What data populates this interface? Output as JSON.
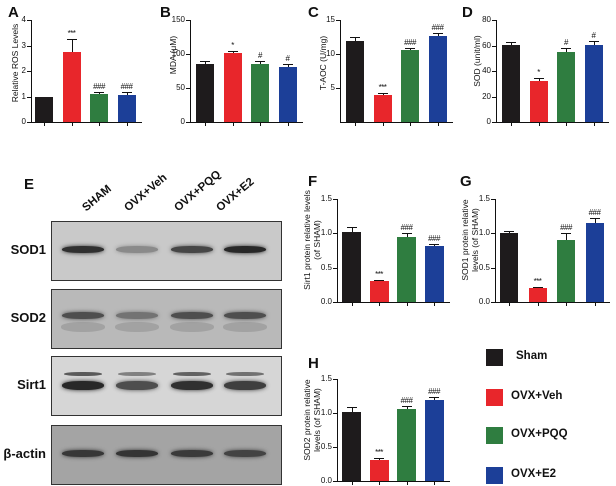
{
  "colors": {
    "Sham": "#1e1b1c",
    "OVX+Veh": "#e8262b",
    "OVX+PQQ": "#2f7d40",
    "OVX+E2": "#1c3f98"
  },
  "groups": [
    "Sham",
    "OVX+Veh",
    "OVX+PQQ",
    "OVX+E2"
  ],
  "chart_data": [
    {
      "panel": "A",
      "type": "bar",
      "title": "",
      "xlabel": "",
      "ylabel": "Relative ROS Levels",
      "ylim": [
        0,
        4
      ],
      "yticks": [
        "0",
        "1",
        "2",
        "3",
        "4"
      ],
      "categories": [
        "Sham",
        "OVX+Veh",
        "OVX+PQQ",
        "OVX+E2"
      ],
      "values": [
        1.0,
        2.75,
        1.08,
        1.07
      ],
      "errors": [
        0,
        0.5,
        0.1,
        0.1
      ],
      "annotations": [
        "",
        "***",
        "###",
        "###"
      ]
    },
    {
      "panel": "B",
      "type": "bar",
      "title": "",
      "xlabel": "",
      "ylabel": "MDA (μM)",
      "ylim": [
        0,
        150
      ],
      "yticks": [
        "0",
        "50",
        "100",
        "150"
      ],
      "categories": [
        "Sham",
        "OVX+Veh",
        "OVX+PQQ",
        "OVX+E2"
      ],
      "values": [
        85,
        101,
        85,
        81
      ],
      "errors": [
        5,
        4,
        4,
        4
      ],
      "annotations": [
        "",
        "*",
        "#",
        "#"
      ]
    },
    {
      "panel": "C",
      "type": "bar",
      "title": "",
      "xlabel": "",
      "ylabel": "T-AOC (U/mg)",
      "ylim": [
        0,
        15
      ],
      "yticks": [
        "5",
        "10",
        "15"
      ],
      "categories": [
        "Sham",
        "OVX+Veh",
        "OVX+PQQ",
        "OVX+E2"
      ],
      "values": [
        11.9,
        4.0,
        10.6,
        12.6
      ],
      "errors": [
        0.6,
        0.3,
        0.3,
        0.5
      ],
      "annotations": [
        "",
        "***",
        "###",
        "###"
      ]
    },
    {
      "panel": "D",
      "type": "bar",
      "title": "",
      "xlabel": "",
      "ylabel": "SOD (unit/ml)",
      "ylim": [
        0,
        80
      ],
      "yticks": [
        "0",
        "20",
        "40",
        "60",
        "80"
      ],
      "categories": [
        "Sham",
        "OVX+Veh",
        "OVX+PQQ",
        "OVX+E2"
      ],
      "values": [
        60.5,
        32,
        55,
        60.5
      ],
      "errors": [
        2.5,
        2.5,
        3,
        3
      ],
      "annotations": [
        "",
        "*",
        "#",
        "#"
      ]
    },
    {
      "panel": "F",
      "type": "bar",
      "title": "",
      "xlabel": "",
      "ylabel": "Sirt1 protein relative levels (of SHAM)",
      "ylim": [
        0,
        1.5
      ],
      "yticks": [
        "0.0",
        "0.5",
        "1.0",
        "1.5"
      ],
      "categories": [
        "Sham",
        "OVX+Veh",
        "OVX+PQQ",
        "OVX+E2"
      ],
      "values": [
        1.02,
        0.3,
        0.95,
        0.81
      ],
      "errors": [
        0.07,
        0.02,
        0.05,
        0.03
      ],
      "annotations": [
        "",
        "***",
        "###",
        "###"
      ]
    },
    {
      "panel": "G",
      "type": "bar",
      "title": "",
      "xlabel": "",
      "ylabel": "SOD1 protein relative levels (of SHAM)",
      "ylim": [
        0,
        1.5
      ],
      "yticks": [
        "0.0",
        "0.5",
        "1.0",
        "1.5"
      ],
      "categories": [
        "Sham",
        "OVX+Veh",
        "OVX+PQQ",
        "OVX+E2"
      ],
      "values": [
        1.0,
        0.2,
        0.9,
        1.15
      ],
      "errors": [
        0.04,
        0.02,
        0.1,
        0.07
      ],
      "annotations": [
        "",
        "***",
        "###",
        "###"
      ]
    },
    {
      "panel": "H",
      "type": "bar",
      "title": "",
      "xlabel": "",
      "ylabel": "SOD2 protein relative levels (of SHAM)",
      "ylim": [
        0,
        1.5
      ],
      "yticks": [
        "0.0",
        "0.5",
        "1.0",
        "1.5"
      ],
      "categories": [
        "Sham",
        "OVX+Veh",
        "OVX+PQQ",
        "OVX+E2"
      ],
      "values": [
        1.02,
        0.31,
        1.06,
        1.19
      ],
      "errors": [
        0.07,
        0.03,
        0.05,
        0.05
      ],
      "annotations": [
        "",
        "***",
        "###",
        "###"
      ]
    }
  ],
  "blot": {
    "panel_label": "E",
    "lanes": [
      "SHAM",
      "OVX+Veh",
      "OVX+PQQ",
      "OVX+E2"
    ],
    "rows": [
      {
        "label": "SOD1",
        "intensity": [
          0.95,
          0.35,
          0.8,
          1.0
        ]
      },
      {
        "label": "SOD2",
        "intensity": [
          0.75,
          0.5,
          0.75,
          0.75
        ]
      },
      {
        "label": "Sirt1",
        "intensity": [
          1.0,
          0.75,
          0.95,
          0.85
        ]
      },
      {
        "label": "β-actin",
        "intensity": [
          0.9,
          0.92,
          0.88,
          0.82
        ]
      }
    ]
  },
  "legend": {
    "items": [
      {
        "label": "Sham",
        "color": "#1e1b1c"
      },
      {
        "label": "OVX+Veh",
        "color": "#e8262b"
      },
      {
        "label": "OVX+PQQ",
        "color": "#2f7d40"
      },
      {
        "label": "OVX+E2",
        "color": "#1c3f98"
      }
    ]
  }
}
